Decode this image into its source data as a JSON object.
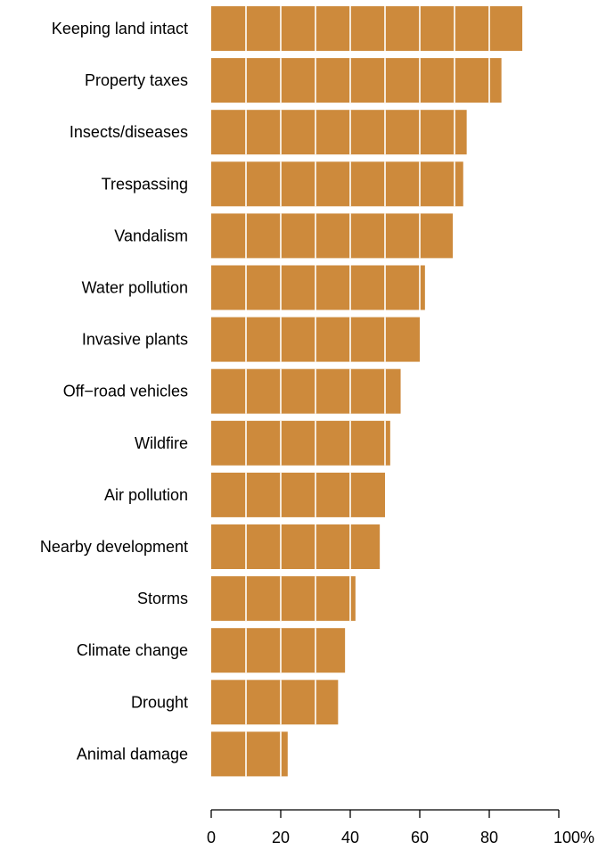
{
  "chart_data": {
    "type": "bar",
    "orientation": "horizontal",
    "categories": [
      "Keeping land intact",
      "Property taxes",
      "Insects/diseases",
      "Trespassing",
      "Vandalism",
      "Water pollution",
      "Invasive plants",
      "Off−road vehicles",
      "Wildfire",
      "Air pollution",
      "Nearby development",
      "Storms",
      "Climate change",
      "Drought",
      "Animal damage"
    ],
    "values": [
      89.5,
      83.5,
      73.5,
      72.5,
      69.5,
      61.5,
      60,
      54.5,
      51.5,
      50,
      48.5,
      41.5,
      38.5,
      36.5,
      22
    ],
    "xlim": [
      0,
      100
    ],
    "xticks": [
      0,
      20,
      40,
      60,
      80,
      100
    ],
    "xtick_labels": [
      "0",
      "20",
      "40",
      "60",
      "80",
      "100%"
    ],
    "grid": true,
    "grid_lines_at": [
      10,
      20,
      30,
      40,
      50,
      60,
      70,
      80,
      90
    ],
    "title": "",
    "xlabel": "",
    "ylabel": "",
    "colors": {
      "bar": "#cd8a3c",
      "grid": "#ffffff",
      "axis": "#000000"
    }
  }
}
